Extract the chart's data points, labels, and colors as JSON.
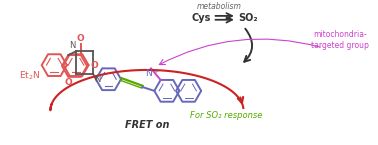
{
  "bg_color": "#ffffff",
  "coumarin_color": "#e05555",
  "piperazine_color": "#555555",
  "blue_color": "#6666bb",
  "green_color": "#55aa00",
  "magenta_color": "#cc44cc",
  "black_color": "#333333",
  "fret_arrow_color": "#cc2222",
  "metabolism_label": "metabolism",
  "cys_label": "Cys",
  "so2_label": "SO₂",
  "for_so2_label": "For SO₂ response",
  "mito_label": "mitochondria-\ntargeted group",
  "fret_label": "FRET on",
  "figsize": [
    3.78,
    1.45
  ],
  "dpi": 100
}
